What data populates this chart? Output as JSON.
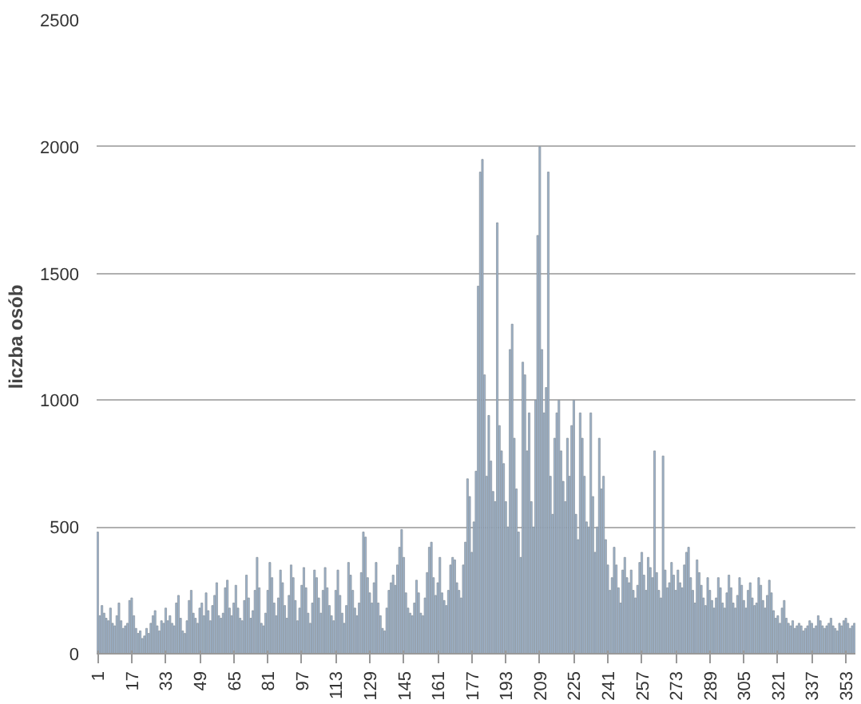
{
  "chart_data": {
    "type": "bar",
    "ylabel": "liczba osób",
    "color": "#9db3cb",
    "x": [
      1,
      2,
      3,
      4,
      5,
      6,
      7,
      8,
      9,
      10,
      11,
      12,
      13,
      14,
      15,
      16,
      17,
      18,
      19,
      20,
      21,
      22,
      23,
      24,
      25,
      26,
      27,
      28,
      29,
      30,
      31,
      32,
      33,
      34,
      35,
      36,
      37,
      38,
      39,
      40,
      41,
      42,
      43,
      44,
      45,
      46,
      47,
      48,
      49,
      50,
      51,
      52,
      53,
      54,
      55,
      56,
      57,
      58,
      59,
      60,
      61,
      62,
      63,
      64,
      65,
      66,
      67,
      68,
      69,
      70,
      71,
      72,
      73,
      74,
      75,
      76,
      77,
      78,
      79,
      80,
      81,
      82,
      83,
      84,
      85,
      86,
      87,
      88,
      89,
      90,
      91,
      92,
      93,
      94,
      95,
      96,
      97,
      98,
      99,
      100,
      101,
      102,
      103,
      104,
      105,
      106,
      107,
      108,
      109,
      110,
      111,
      112,
      113,
      114,
      115,
      116,
      117,
      118,
      119,
      120,
      121,
      122,
      123,
      124,
      125,
      126,
      127,
      128,
      129,
      130,
      131,
      132,
      133,
      134,
      135,
      136,
      137,
      138,
      139,
      140,
      141,
      142,
      143,
      144,
      145,
      146,
      147,
      148,
      149,
      150,
      151,
      152,
      153,
      154,
      155,
      156,
      157,
      158,
      159,
      160,
      161,
      162,
      163,
      164,
      165,
      166,
      167,
      168,
      169,
      170,
      171,
      172,
      173,
      174,
      175,
      176,
      177,
      178,
      179,
      180,
      181,
      182,
      183,
      184,
      185,
      186,
      187,
      188,
      189,
      190,
      191,
      192,
      193,
      194,
      195,
      196,
      197,
      198,
      199,
      200,
      201,
      202,
      203,
      204,
      205,
      206,
      207,
      208,
      209,
      210,
      211,
      212,
      213,
      214,
      215,
      216,
      217,
      218,
      219,
      220,
      221,
      222,
      223,
      224,
      225,
      226,
      227,
      228,
      229,
      230,
      231,
      232,
      233,
      234,
      235,
      236,
      237,
      238,
      239,
      240,
      241,
      242,
      243,
      244,
      245,
      246,
      247,
      248,
      249,
      250,
      251,
      252,
      253,
      254,
      255,
      256,
      257,
      258,
      259,
      260,
      261,
      262,
      263,
      264,
      265,
      266,
      267,
      268,
      269,
      270,
      271,
      272,
      273,
      274,
      275,
      276,
      277,
      278,
      279,
      280,
      281,
      282,
      283,
      284,
      285,
      286,
      287,
      288,
      289,
      290,
      291,
      292,
      293,
      294,
      295,
      296,
      297,
      298,
      299,
      300,
      301,
      302,
      303,
      304,
      305,
      306,
      307,
      308,
      309,
      310,
      311,
      312,
      313,
      314,
      315,
      316,
      317,
      318,
      319,
      320,
      321,
      322,
      323,
      324,
      325,
      326,
      327,
      328,
      329,
      330,
      331,
      332,
      333,
      334,
      335,
      336,
      337,
      338,
      339,
      340,
      341,
      342,
      343,
      344,
      345,
      346,
      347,
      348,
      349,
      350,
      351,
      352,
      353,
      354,
      355,
      356,
      357
    ],
    "values": [
      480,
      150,
      190,
      160,
      140,
      130,
      180,
      120,
      110,
      150,
      200,
      130,
      100,
      110,
      120,
      210,
      220,
      150,
      100,
      80,
      90,
      60,
      70,
      100,
      80,
      120,
      150,
      170,
      110,
      90,
      130,
      120,
      180,
      130,
      150,
      120,
      110,
      200,
      230,
      140,
      90,
      80,
      130,
      210,
      250,
      160,
      140,
      120,
      180,
      200,
      150,
      240,
      170,
      130,
      190,
      230,
      280,
      150,
      140,
      160,
      260,
      290,
      180,
      150,
      200,
      270,
      180,
      140,
      130,
      210,
      310,
      220,
      140,
      170,
      250,
      380,
      260,
      120,
      110,
      160,
      250,
      360,
      300,
      200,
      150,
      220,
      330,
      280,
      190,
      140,
      230,
      350,
      300,
      210,
      130,
      180,
      270,
      340,
      260,
      160,
      120,
      200,
      330,
      300,
      220,
      160,
      250,
      340,
      260,
      190,
      150,
      130,
      250,
      330,
      230,
      160,
      120,
      190,
      360,
      310,
      250,
      180,
      150,
      200,
      320,
      480,
      460,
      300,
      240,
      200,
      280,
      360,
      200,
      150,
      100,
      90,
      180,
      250,
      280,
      310,
      270,
      350,
      420,
      490,
      380,
      240,
      180,
      160,
      150,
      200,
      290,
      240,
      160,
      150,
      220,
      320,
      420,
      440,
      300,
      230,
      280,
      380,
      240,
      210,
      190,
      250,
      350,
      380,
      370,
      280,
      250,
      220,
      350,
      440,
      690,
      620,
      400,
      520,
      720,
      1450,
      1900,
      1950,
      1100,
      700,
      940,
      760,
      640,
      600,
      1700,
      900,
      800,
      750,
      600,
      500,
      1200,
      1300,
      850,
      650,
      480,
      380,
      1150,
      1100,
      800,
      950,
      600,
      500,
      1000,
      1650,
      2000,
      1200,
      950,
      1050,
      1900,
      700,
      550,
      850,
      950,
      1000,
      800,
      680,
      600,
      850,
      700,
      900,
      1000,
      550,
      450,
      950,
      850,
      700,
      520,
      500,
      950,
      620,
      400,
      500,
      850,
      650,
      700,
      450,
      350,
      250,
      300,
      420,
      350,
      260,
      200,
      330,
      380,
      300,
      280,
      330,
      250,
      220,
      270,
      360,
      400,
      310,
      250,
      380,
      340,
      300,
      800,
      320,
      250,
      220,
      780,
      330,
      260,
      280,
      360,
      310,
      250,
      330,
      280,
      260,
      350,
      400,
      420,
      300,
      250,
      200,
      370,
      320,
      270,
      220,
      190,
      300,
      250,
      210,
      180,
      220,
      300,
      260,
      200,
      180,
      240,
      310,
      260,
      200,
      180,
      230,
      300,
      270,
      210,
      180,
      250,
      280,
      220,
      190,
      200,
      300,
      270,
      210,
      180,
      230,
      290,
      240,
      170,
      140,
      150,
      120,
      180,
      210,
      140,
      120,
      110,
      130,
      100,
      110,
      120,
      110,
      90,
      100,
      110,
      130,
      120,
      100,
      110,
      150,
      130,
      110,
      100,
      110,
      120,
      140,
      110,
      100,
      90,
      120,
      110,
      130,
      140,
      120,
      100,
      110,
      120
    ],
    "xlim": [
      0.5,
      357.5
    ],
    "xticks": [
      1,
      17,
      33,
      49,
      65,
      81,
      97,
      113,
      129,
      145,
      161,
      177,
      193,
      209,
      225,
      241,
      257,
      273,
      289,
      305,
      321,
      337,
      353
    ],
    "ylim": [
      0,
      2500
    ],
    "yticks": [
      0,
      500,
      1000,
      1500,
      2000,
      2500
    ],
    "grid": "y"
  }
}
